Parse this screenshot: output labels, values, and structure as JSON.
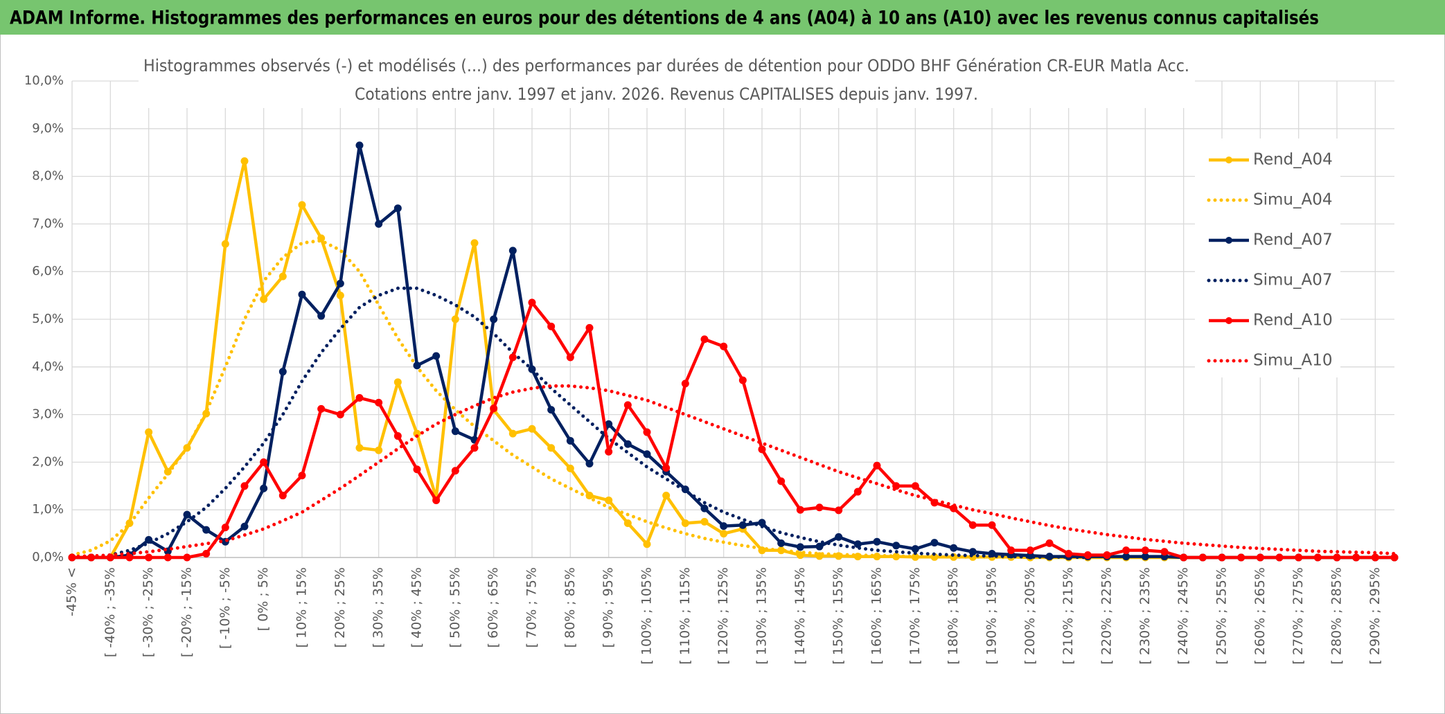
{
  "page_title": "ADAM Informe. Histogrammes des performances en euros pour des détentions de 4 ans (A04) à 10 ans (A10) avec les revenus connus capitalisés",
  "chart_data": {
    "type": "line",
    "title": "Histogrammes observés (-) et modélisés (...) des performances par durées de détention pour ODDO BHF Génération CR-EUR Matla Acc.",
    "subtitle": "Cotations entre janv. 1997 et janv. 2026. Revenus CAPITALISES depuis janv. 1997.",
    "categories": [
      "-45% <",
      null,
      "[ -40% ; -35%",
      null,
      "[ -30% ; -25%",
      null,
      "[ -20% ; -15%",
      null,
      "[ -10% ; -5%",
      null,
      "[ 0% ; 5%",
      null,
      "[ 10% ; 15%",
      null,
      "[ 20% ; 25%",
      null,
      "[ 30% ; 35%",
      null,
      "[ 40% ; 45%",
      null,
      "[ 50% ; 55%",
      null,
      "[ 60% ; 65%",
      null,
      "[ 70% ; 75%",
      null,
      "[ 80% ; 85%",
      null,
      "[ 90% ; 95%",
      null,
      "[ 100% ; 105%",
      null,
      "[ 110% ; 115%",
      null,
      "[ 120% ; 125%",
      null,
      "[ 130% ; 135%",
      null,
      "[ 140% ; 145%",
      null,
      "[ 150% ; 155%",
      null,
      "[ 160% ; 165%",
      null,
      "[ 170% ; 175%",
      null,
      "[ 180% ; 185%",
      null,
      "[ 190% ; 195%",
      null,
      "[ 200% ; 205%",
      null,
      "[ 210% ; 215%",
      null,
      "[ 220% ; 225%",
      null,
      "[ 230% ; 235%",
      null,
      "[ 240% ; 245%",
      null,
      "[ 250% ; 255%",
      null,
      "[ 260% ; 265%",
      null,
      "[ 270% ; 275%",
      null,
      "[ 280% ; 285%",
      null,
      "[ 290% ; 295%",
      null
    ],
    "ylim": [
      0,
      10
    ],
    "yticks": [
      {
        "value": 0,
        "label": "0,0%"
      },
      {
        "value": 1,
        "label": "1,0%"
      },
      {
        "value": 2,
        "label": "2,0%"
      },
      {
        "value": 3,
        "label": "3,0%"
      },
      {
        "value": 4,
        "label": "4,0%"
      },
      {
        "value": 5,
        "label": "5,0%"
      },
      {
        "value": 6,
        "label": "6,0%"
      },
      {
        "value": 7,
        "label": "7,0%"
      },
      {
        "value": 8,
        "label": "8,0%"
      },
      {
        "value": 9,
        "label": "9,0%"
      },
      {
        "value": 10,
        "label": "10,0%"
      }
    ],
    "grid": true,
    "legend": "right",
    "series": [
      {
        "name": "Rend_A04",
        "color": "#FFC000",
        "line_style": "solid",
        "markers": true,
        "values": [
          0,
          0,
          0,
          0.72,
          2.63,
          1.8,
          2.3,
          3.02,
          6.58,
          8.32,
          5.42,
          5.9,
          7.4,
          6.7,
          5.5,
          2.3,
          2.25,
          3.68,
          2.6,
          1.25,
          5.0,
          6.6,
          3.1,
          2.6,
          2.7,
          2.3,
          1.87,
          1.3,
          1.2,
          0.72,
          0.28,
          1.3,
          0.72,
          0.75,
          0.5,
          0.6,
          0.15,
          0.15,
          0.05,
          0.03,
          0.03,
          0.02,
          0.02,
          0.02,
          0.01,
          0.01,
          0.01,
          0.01,
          0.01,
          0.01,
          0,
          0,
          0,
          0,
          0,
          0,
          0,
          0,
          0,
          0,
          0,
          0,
          0,
          0,
          0,
          0,
          0,
          0,
          0,
          0
        ]
      },
      {
        "name": "Simu_A04",
        "color": "#FFC000",
        "line_style": "dotted",
        "markers": false,
        "values": [
          0.05,
          0.15,
          0.35,
          0.7,
          1.25,
          1.75,
          2.3,
          3.05,
          4.0,
          5.0,
          5.8,
          6.3,
          6.6,
          6.65,
          6.45,
          6.0,
          5.3,
          4.6,
          4.0,
          3.5,
          3.1,
          2.75,
          2.45,
          2.15,
          1.9,
          1.65,
          1.45,
          1.25,
          1.05,
          0.9,
          0.75,
          0.62,
          0.5,
          0.4,
          0.32,
          0.25,
          0.19,
          0.15,
          0.11,
          0.08,
          0.06,
          0.05,
          0.04,
          0.03,
          0.02,
          0.02,
          0.01,
          0.01,
          0.01,
          0,
          null,
          null,
          null,
          null,
          null,
          null,
          null,
          null,
          null,
          null,
          null,
          null,
          null,
          null,
          null,
          null,
          null,
          null,
          null,
          null
        ]
      },
      {
        "name": "Rend_A07",
        "color": "#002060",
        "line_style": "solid",
        "markers": true,
        "values": [
          0,
          0,
          0,
          0.05,
          0.37,
          0.13,
          0.9,
          0.58,
          0.33,
          0.65,
          1.45,
          3.9,
          5.52,
          5.07,
          5.75,
          8.65,
          7.0,
          7.33,
          4.03,
          4.23,
          2.65,
          2.47,
          5.0,
          6.44,
          3.95,
          3.1,
          2.45,
          1.97,
          2.8,
          2.38,
          2.17,
          1.8,
          1.43,
          1.03,
          0.66,
          0.68,
          0.73,
          0.3,
          0.22,
          0.23,
          0.43,
          0.28,
          0.33,
          0.25,
          0.18,
          0.31,
          0.2,
          0.12,
          0.08,
          0.06,
          0.04,
          0.02,
          0.02,
          0.02,
          0.02,
          0.02,
          0.02,
          0.02,
          0,
          0,
          0,
          0,
          0,
          0,
          0,
          0,
          0,
          0,
          0,
          0
        ]
      },
      {
        "name": "Simu_A07",
        "color": "#002060",
        "line_style": "dotted",
        "markers": false,
        "values": [
          0,
          0.02,
          0.05,
          0.15,
          0.3,
          0.5,
          0.75,
          1.05,
          1.45,
          1.9,
          2.4,
          3.0,
          3.7,
          4.3,
          4.8,
          5.25,
          5.5,
          5.65,
          5.65,
          5.5,
          5.3,
          5.05,
          4.7,
          4.3,
          3.95,
          3.55,
          3.2,
          2.85,
          2.5,
          2.2,
          1.9,
          1.65,
          1.4,
          1.15,
          0.95,
          0.8,
          0.65,
          0.52,
          0.42,
          0.33,
          0.26,
          0.2,
          0.15,
          0.12,
          0.09,
          0.07,
          0.05,
          0.04,
          0.03,
          0.02,
          0.01,
          0.01,
          0.01,
          0,
          null,
          null,
          null,
          null,
          null,
          null,
          null,
          null,
          null,
          null,
          null,
          null,
          null,
          null,
          null,
          null
        ]
      },
      {
        "name": "Rend_A10",
        "color": "#FF0000",
        "line_style": "solid",
        "markers": true,
        "values": [
          0,
          0,
          0,
          0,
          0,
          0,
          0,
          0.08,
          0.63,
          1.5,
          2.0,
          1.3,
          1.72,
          3.12,
          3.0,
          3.35,
          3.25,
          2.55,
          1.85,
          1.2,
          1.82,
          2.3,
          3.13,
          4.2,
          5.35,
          4.85,
          4.2,
          4.82,
          2.22,
          3.2,
          2.63,
          1.88,
          3.65,
          4.58,
          4.43,
          3.72,
          2.27,
          1.6,
          1.0,
          1.05,
          0.99,
          1.38,
          1.93,
          1.5,
          1.5,
          1.15,
          1.03,
          0.68,
          0.68,
          0.15,
          0.15,
          0.3,
          0.08,
          0.05,
          0.05,
          0.15,
          0.15,
          0.12,
          0,
          0,
          0,
          0,
          0,
          0,
          0,
          0,
          0,
          0,
          0,
          0
        ]
      },
      {
        "name": "Simu_A10",
        "color": "#FF0000",
        "line_style": "dotted",
        "markers": false,
        "values": [
          0.02,
          0.03,
          0.05,
          0.08,
          0.12,
          0.17,
          0.23,
          0.29,
          0.35,
          0.47,
          0.6,
          0.77,
          0.95,
          1.2,
          1.45,
          1.72,
          2.0,
          2.28,
          2.55,
          2.8,
          3.0,
          3.18,
          3.35,
          3.47,
          3.55,
          3.6,
          3.6,
          3.56,
          3.5,
          3.4,
          3.3,
          3.15,
          3.0,
          2.85,
          2.7,
          2.55,
          2.4,
          2.25,
          2.1,
          1.95,
          1.8,
          1.67,
          1.55,
          1.42,
          1.3,
          1.2,
          1.1,
          1.0,
          0.92,
          0.83,
          0.75,
          0.67,
          0.6,
          0.54,
          0.48,
          0.43,
          0.38,
          0.34,
          0.3,
          0.27,
          0.24,
          0.21,
          0.19,
          0.17,
          0.15,
          0.13,
          0.12,
          0.11,
          0.1,
          0.08
        ]
      }
    ]
  }
}
